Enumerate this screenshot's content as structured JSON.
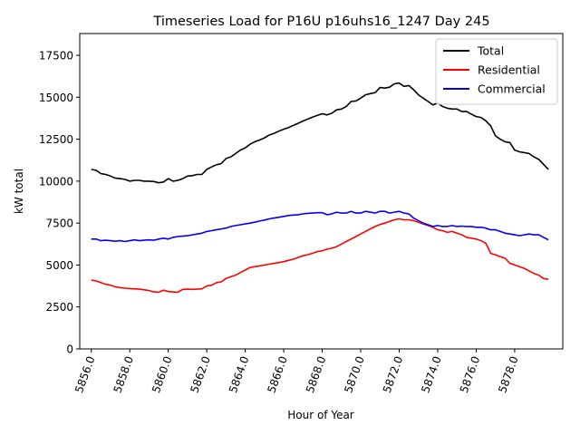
{
  "chart_data": {
    "type": "line",
    "title": "Timeseries Load for P16U p16uhs16_1247  Day 245",
    "xlabel": "Hour of Year",
    "ylabel": "kW total",
    "xlim": [
      5855.4,
      5880.5
    ],
    "ylim": [
      0,
      18800
    ],
    "xticks": [
      5856,
      5858,
      5860,
      5862,
      5864,
      5866,
      5868,
      5870,
      5872,
      5874,
      5876,
      5878
    ],
    "xtick_labels": [
      "5856.0",
      "5858.0",
      "5860.0",
      "5862.0",
      "5864.0",
      "5866.0",
      "5868.0",
      "5870.0",
      "5872.0",
      "5874.0",
      "5876.0",
      "5878.0"
    ],
    "yticks": [
      0,
      2500,
      5000,
      7500,
      10000,
      12500,
      15000,
      17500
    ],
    "ytick_labels": [
      "0",
      "2500",
      "5000",
      "7500",
      "10000",
      "12500",
      "15000",
      "17500"
    ],
    "grid": false,
    "legend_position": "top-right",
    "x": [
      5856.0,
      5856.25,
      5856.5,
      5856.75,
      5857.0,
      5857.25,
      5857.5,
      5857.75,
      5858.0,
      5858.25,
      5858.5,
      5858.75,
      5859.0,
      5859.25,
      5859.5,
      5859.75,
      5860.0,
      5860.25,
      5860.5,
      5860.75,
      5861.0,
      5861.25,
      5861.5,
      5861.75,
      5862.0,
      5862.25,
      5862.5,
      5862.75,
      5863.0,
      5863.25,
      5863.5,
      5863.75,
      5864.0,
      5864.25,
      5864.5,
      5864.75,
      5865.0,
      5865.25,
      5865.5,
      5865.75,
      5866.0,
      5866.25,
      5866.5,
      5866.75,
      5867.0,
      5867.25,
      5867.5,
      5867.75,
      5868.0,
      5868.25,
      5868.5,
      5868.75,
      5869.0,
      5869.25,
      5869.5,
      5869.75,
      5870.0,
      5870.25,
      5870.5,
      5870.75,
      5871.0,
      5871.25,
      5871.5,
      5871.75,
      5872.0,
      5872.25,
      5872.5,
      5872.75,
      5873.0,
      5873.25,
      5873.5,
      5873.75,
      5874.0,
      5874.25,
      5874.5,
      5874.75,
      5875.0,
      5875.25,
      5875.5,
      5875.75,
      5876.0,
      5876.25,
      5876.5,
      5876.75,
      5877.0,
      5877.25,
      5877.5,
      5877.75,
      5878.0,
      5878.25,
      5878.5,
      5878.75,
      5879.0,
      5879.25,
      5879.5,
      5879.75
    ],
    "series": [
      {
        "name": "Total",
        "color": "#000000",
        "values": [
          10700,
          10650,
          10450,
          10400,
          10300,
          10180,
          10150,
          10100,
          10000,
          10050,
          10050,
          10000,
          10000,
          9980,
          9900,
          9950,
          10150,
          10000,
          10050,
          10150,
          10300,
          10330,
          10400,
          10400,
          10700,
          10850,
          10980,
          11050,
          11350,
          11450,
          11650,
          11850,
          11980,
          12200,
          12350,
          12450,
          12580,
          12750,
          12850,
          12980,
          13100,
          13200,
          13320,
          13450,
          13580,
          13700,
          13820,
          13920,
          14020,
          13950,
          14050,
          14250,
          14300,
          14450,
          14750,
          14780,
          14950,
          15150,
          15220,
          15280,
          15580,
          15550,
          15600,
          15800,
          15850,
          15650,
          15700,
          15450,
          15150,
          14950,
          14750,
          14550,
          14650,
          14450,
          14350,
          14300,
          14300,
          14150,
          14150,
          14000,
          13850,
          13800,
          13600,
          13300,
          12700,
          12500,
          12350,
          12300,
          11850,
          11750,
          11700,
          11650,
          11450,
          11300,
          11000,
          10700
        ]
      },
      {
        "name": "Residential",
        "color": "#ff0000",
        "values": [
          4100,
          4050,
          3950,
          3850,
          3800,
          3700,
          3650,
          3620,
          3600,
          3580,
          3560,
          3520,
          3480,
          3400,
          3380,
          3500,
          3420,
          3400,
          3380,
          3550,
          3560,
          3550,
          3560,
          3580,
          3750,
          3800,
          3950,
          4000,
          4200,
          4300,
          4400,
          4550,
          4700,
          4850,
          4900,
          4950,
          5000,
          5050,
          5100,
          5150,
          5200,
          5280,
          5350,
          5450,
          5550,
          5620,
          5700,
          5800,
          5850,
          5950,
          6000,
          6100,
          6250,
          6400,
          6550,
          6700,
          6850,
          7000,
          7150,
          7300,
          7420,
          7500,
          7600,
          7700,
          7750,
          7700,
          7700,
          7650,
          7550,
          7450,
          7350,
          7250,
          7100,
          7050,
          6950,
          7000,
          6900,
          6800,
          6650,
          6600,
          6550,
          6450,
          6300,
          5700,
          5600,
          5500,
          5400,
          5100,
          5000,
          4900,
          4800,
          4650,
          4500,
          4400,
          4200,
          4150
        ]
      },
      {
        "name": "Commercial",
        "color": "#0000ff",
        "values": [
          6550,
          6550,
          6450,
          6480,
          6450,
          6420,
          6450,
          6400,
          6450,
          6500,
          6450,
          6480,
          6500,
          6480,
          6550,
          6600,
          6550,
          6650,
          6700,
          6720,
          6750,
          6800,
          6850,
          6900,
          7000,
          7050,
          7100,
          7150,
          7200,
          7300,
          7350,
          7400,
          7450,
          7500,
          7550,
          7620,
          7680,
          7750,
          7800,
          7850,
          7900,
          7950,
          7980,
          8000,
          8050,
          8080,
          8100,
          8120,
          8120,
          8000,
          8050,
          8150,
          8100,
          8100,
          8200,
          8100,
          8100,
          8200,
          8150,
          8100,
          8200,
          8200,
          8100,
          8150,
          8200,
          8100,
          8050,
          7800,
          7650,
          7500,
          7400,
          7300,
          7350,
          7300,
          7300,
          7350,
          7300,
          7320,
          7300,
          7300,
          7250,
          7250,
          7200,
          7100,
          7100,
          7000,
          6900,
          6850,
          6800,
          6750,
          6800,
          6850,
          6800,
          6800,
          6650,
          6500
        ]
      }
    ]
  }
}
